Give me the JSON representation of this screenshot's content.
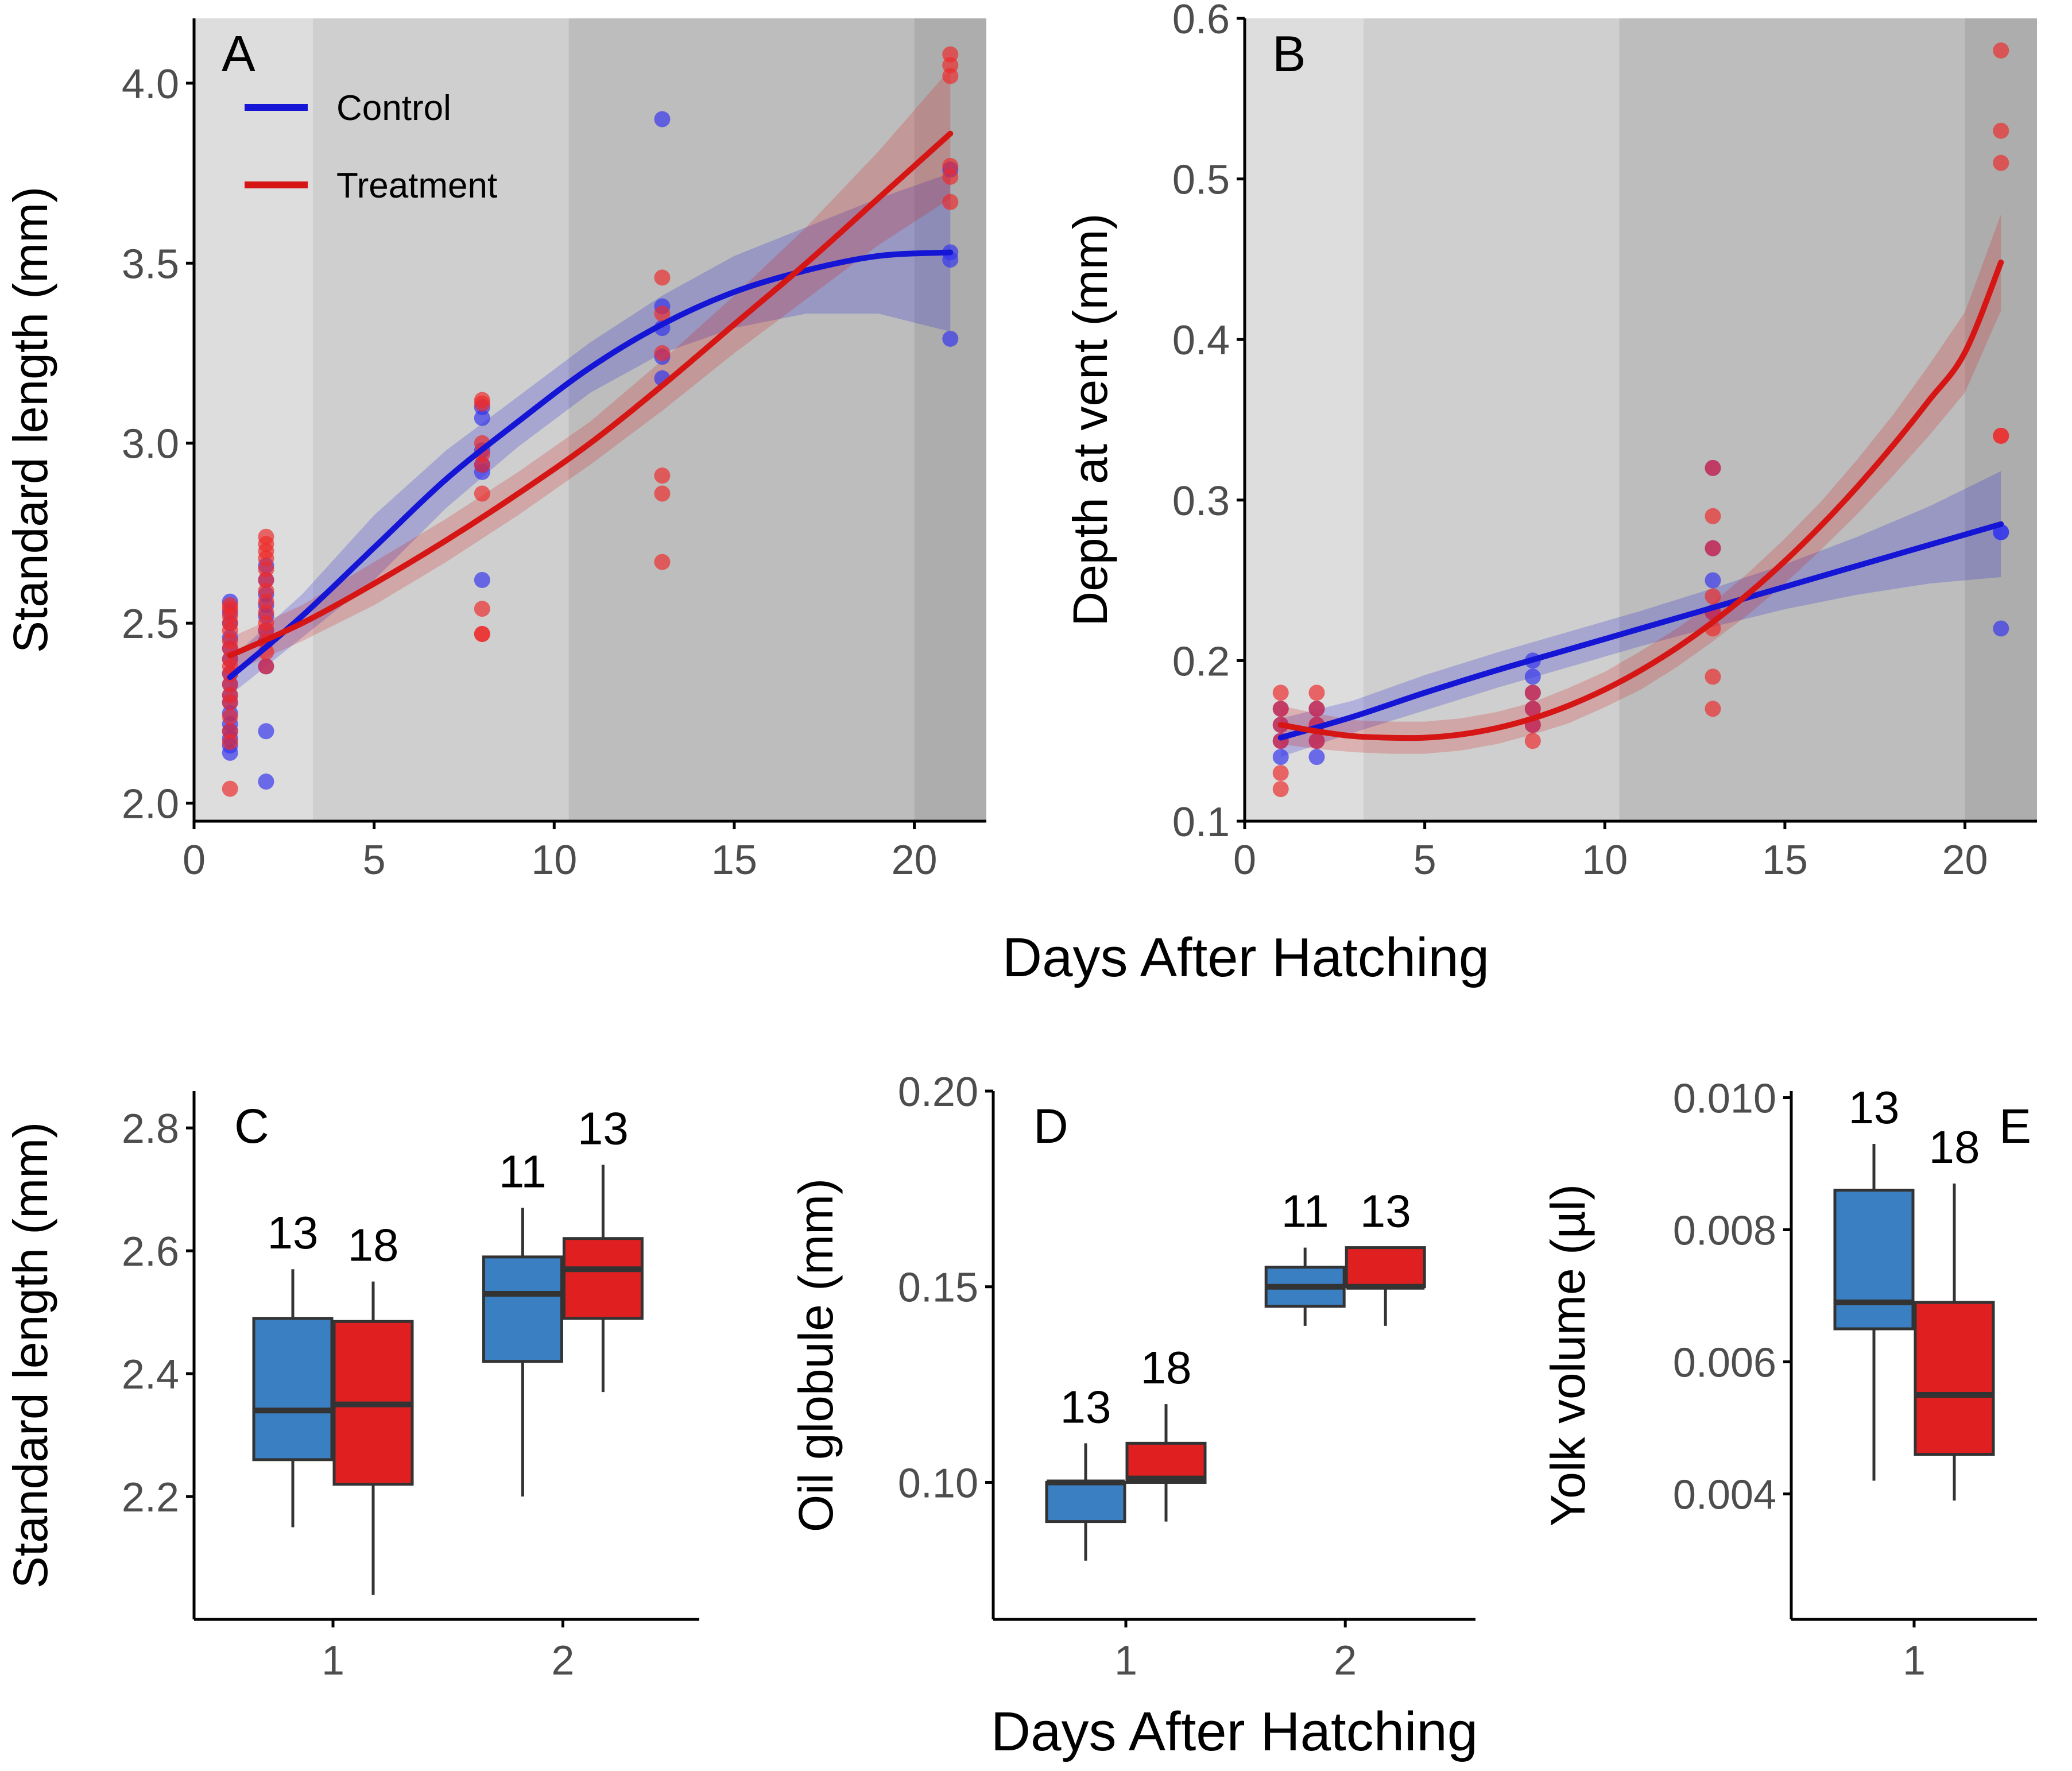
{
  "figure": {
    "shared_xlabel_top": "Days After Hatching",
    "shared_xlabel_bottom": "Days After Hatching"
  },
  "colors": {
    "control_line": "#1515d6",
    "treatment_line": "#d61515",
    "control_point": "#3333ee",
    "treatment_point": "#ee2a2a",
    "control_box": "#3a7fc1",
    "treatment_box": "#e02020",
    "band1": "#dddddd",
    "band2": "#cfcfcf",
    "band3": "#bdbdbd",
    "band4": "#adadad"
  },
  "chart_data": [
    {
      "id": "A",
      "type": "scatter",
      "letter": "A",
      "xlabel": "",
      "ylabel": "Standard length (mm)",
      "xlim": [
        0,
        22
      ],
      "ylim": [
        1.95,
        4.18
      ],
      "xticks": [
        0,
        5,
        10,
        15,
        20
      ],
      "yticks": [
        2.0,
        2.5,
        3.0,
        3.5,
        4.0
      ],
      "ytick_labels": [
        "2.0",
        "2.5",
        "3.0",
        "3.5",
        "4.0"
      ],
      "xtick_labels": [
        "0",
        "5",
        "10",
        "15",
        "20"
      ],
      "background_bands": [
        [
          0,
          3.3
        ],
        [
          3.3,
          10.4
        ],
        [
          10.4,
          20.0
        ],
        [
          20.0,
          22
        ]
      ],
      "legend": {
        "position": "top-left",
        "entries": [
          "Control",
          "Treatment"
        ]
      },
      "series": [
        {
          "name": "Control",
          "points": [
            [
              1,
              2.14
            ],
            [
              1,
              2.16
            ],
            [
              1,
              2.18
            ],
            [
              1,
              2.2
            ],
            [
              1,
              2.22
            ],
            [
              1,
              2.25
            ],
            [
              1,
              2.28
            ],
            [
              1,
              2.3
            ],
            [
              1,
              2.33
            ],
            [
              1,
              2.36
            ],
            [
              1,
              2.4
            ],
            [
              1,
              2.43
            ],
            [
              1,
              2.46
            ],
            [
              1,
              2.5
            ],
            [
              1,
              2.53
            ],
            [
              1,
              2.56
            ],
            [
              2,
              2.06
            ],
            [
              2,
              2.2
            ],
            [
              2,
              2.38
            ],
            [
              2,
              2.45
            ],
            [
              2,
              2.48
            ],
            [
              2,
              2.52
            ],
            [
              2,
              2.55
            ],
            [
              2,
              2.58
            ],
            [
              2,
              2.62
            ],
            [
              2,
              2.66
            ],
            [
              8,
              2.62
            ],
            [
              8,
              2.92
            ],
            [
              8,
              2.94
            ],
            [
              8,
              2.98
            ],
            [
              8,
              3.07
            ],
            [
              8,
              3.1
            ],
            [
              13,
              3.18
            ],
            [
              13,
              3.24
            ],
            [
              13,
              3.32
            ],
            [
              13,
              3.38
            ],
            [
              13,
              3.9
            ],
            [
              21,
              3.29
            ],
            [
              21,
              3.51
            ],
            [
              21,
              3.53
            ],
            [
              21,
              3.76
            ]
          ],
          "fit_x": [
            1,
            3,
            5,
            7,
            9,
            11,
            13,
            15,
            17,
            19,
            21
          ],
          "fit_y": [
            2.35,
            2.52,
            2.71,
            2.9,
            3.06,
            3.21,
            3.33,
            3.42,
            3.48,
            3.52,
            3.53
          ],
          "ci_half": [
            0.05,
            0.06,
            0.09,
            0.08,
            0.07,
            0.07,
            0.08,
            0.1,
            0.12,
            0.16,
            0.22
          ]
        },
        {
          "name": "Treatment",
          "points": [
            [
              1,
              2.04
            ],
            [
              1,
              2.17
            ],
            [
              1,
              2.2
            ],
            [
              1,
              2.24
            ],
            [
              1,
              2.28
            ],
            [
              1,
              2.3
            ],
            [
              1,
              2.33
            ],
            [
              1,
              2.36
            ],
            [
              1,
              2.38
            ],
            [
              1,
              2.4
            ],
            [
              1,
              2.43
            ],
            [
              1,
              2.45
            ],
            [
              1,
              2.48
            ],
            [
              1,
              2.5
            ],
            [
              1,
              2.52
            ],
            [
              1,
              2.54
            ],
            [
              1,
              2.55
            ],
            [
              2,
              2.38
            ],
            [
              2,
              2.42
            ],
            [
              2,
              2.45
            ],
            [
              2,
              2.48
            ],
            [
              2,
              2.5
            ],
            [
              2,
              2.53
            ],
            [
              2,
              2.56
            ],
            [
              2,
              2.59
            ],
            [
              2,
              2.62
            ],
            [
              2,
              2.65
            ],
            [
              2,
              2.68
            ],
            [
              2,
              2.7
            ],
            [
              2,
              2.72
            ],
            [
              2,
              2.74
            ],
            [
              8,
              2.47
            ],
            [
              8,
              2.47
            ],
            [
              8,
              2.54
            ],
            [
              8,
              2.86
            ],
            [
              8,
              2.94
            ],
            [
              8,
              2.97
            ],
            [
              8,
              3.0
            ],
            [
              8,
              3.11
            ],
            [
              8,
              3.12
            ],
            [
              13,
              2.67
            ],
            [
              13,
              2.86
            ],
            [
              13,
              2.91
            ],
            [
              13,
              3.25
            ],
            [
              13,
              3.36
            ],
            [
              13,
              3.46
            ],
            [
              21,
              3.67
            ],
            [
              21,
              3.74
            ],
            [
              21,
              3.77
            ],
            [
              21,
              4.02
            ],
            [
              21,
              4.05
            ],
            [
              21,
              4.08
            ]
          ],
          "fit_x": [
            1,
            3,
            5,
            7,
            9,
            11,
            13,
            15,
            17,
            19,
            21
          ],
          "fit_y": [
            2.41,
            2.5,
            2.61,
            2.73,
            2.86,
            3.0,
            3.16,
            3.33,
            3.5,
            3.68,
            3.86
          ],
          "ci_half": [
            0.05,
            0.05,
            0.06,
            0.06,
            0.06,
            0.06,
            0.07,
            0.08,
            0.1,
            0.13,
            0.18
          ]
        }
      ]
    },
    {
      "id": "B",
      "type": "scatter",
      "letter": "B",
      "xlabel": "",
      "ylabel": "Depth at vent (mm)",
      "xlim": [
        0,
        22
      ],
      "ylim": [
        0.1,
        0.6
      ],
      "xticks": [
        0,
        5,
        10,
        15,
        20
      ],
      "yticks": [
        0.1,
        0.2,
        0.3,
        0.4,
        0.5,
        0.6
      ],
      "ytick_labels": [
        "0.1",
        "0.2",
        "0.3",
        "0.4",
        "0.5",
        "0.6"
      ],
      "xtick_labels": [
        "0",
        "5",
        "10",
        "15",
        "20"
      ],
      "background_bands": [
        [
          0,
          3.3
        ],
        [
          3.3,
          10.4
        ],
        [
          10.4,
          20.0
        ],
        [
          20.0,
          22
        ]
      ],
      "series": [
        {
          "name": "Control",
          "points": [
            [
              1,
              0.14
            ],
            [
              1,
              0.15
            ],
            [
              1,
              0.16
            ],
            [
              1,
              0.17
            ],
            [
              2,
              0.14
            ],
            [
              2,
              0.15
            ],
            [
              2,
              0.16
            ],
            [
              2,
              0.17
            ],
            [
              8,
              0.16
            ],
            [
              8,
              0.17
            ],
            [
              8,
              0.18
            ],
            [
              8,
              0.19
            ],
            [
              8,
              0.2
            ],
            [
              13,
              0.23
            ],
            [
              13,
              0.25
            ],
            [
              13,
              0.27
            ],
            [
              13,
              0.32
            ],
            [
              21,
              0.22
            ],
            [
              21,
              0.28
            ],
            [
              21,
              0.28
            ]
          ],
          "fit_x": [
            1,
            3,
            5,
            7,
            9,
            11,
            13,
            15,
            17,
            19,
            21
          ],
          "fit_y": [
            0.152,
            0.165,
            0.18,
            0.194,
            0.207,
            0.22,
            0.233,
            0.246,
            0.259,
            0.272,
            0.285
          ],
          "ci_half": [
            0.012,
            0.01,
            0.011,
            0.011,
            0.011,
            0.011,
            0.012,
            0.014,
            0.018,
            0.024,
            0.033
          ]
        },
        {
          "name": "Treatment",
          "points": [
            [
              1,
              0.12
            ],
            [
              1,
              0.13
            ],
            [
              1,
              0.15
            ],
            [
              1,
              0.16
            ],
            [
              1,
              0.17
            ],
            [
              1,
              0.18
            ],
            [
              2,
              0.15
            ],
            [
              2,
              0.16
            ],
            [
              2,
              0.17
            ],
            [
              2,
              0.18
            ],
            [
              8,
              0.15
            ],
            [
              8,
              0.16
            ],
            [
              8,
              0.17
            ],
            [
              8,
              0.18
            ],
            [
              13,
              0.17
            ],
            [
              13,
              0.19
            ],
            [
              13,
              0.22
            ],
            [
              13,
              0.23
            ],
            [
              13,
              0.24
            ],
            [
              13,
              0.27
            ],
            [
              13,
              0.29
            ],
            [
              13,
              0.32
            ],
            [
              21,
              0.34
            ],
            [
              21,
              0.34
            ],
            [
              21,
              0.51
            ],
            [
              21,
              0.53
            ],
            [
              21,
              0.58
            ]
          ],
          "fit_x": [
            1,
            2,
            3,
            4,
            5,
            6,
            7,
            8,
            9,
            10,
            11,
            12,
            13,
            14,
            15,
            16,
            17,
            18,
            19,
            20,
            21
          ],
          "fit_y": [
            0.16,
            0.156,
            0.153,
            0.152,
            0.152,
            0.154,
            0.158,
            0.164,
            0.172,
            0.182,
            0.194,
            0.208,
            0.224,
            0.242,
            0.262,
            0.284,
            0.308,
            0.334,
            0.362,
            0.392,
            0.448
          ],
          "ci_half": [
            0.012,
            0.011,
            0.01,
            0.01,
            0.01,
            0.01,
            0.01,
            0.01,
            0.011,
            0.011,
            0.012,
            0.012,
            0.012,
            0.013,
            0.014,
            0.015,
            0.017,
            0.019,
            0.022,
            0.025,
            0.03
          ]
        }
      ]
    },
    {
      "id": "C",
      "type": "box",
      "letter": "C",
      "xlabel": "",
      "ylabel": "Standard length (mm)",
      "ylim": [
        2.0,
        2.86
      ],
      "yticks": [
        2.2,
        2.4,
        2.6,
        2.8
      ],
      "ytick_labels": [
        "2.2",
        "2.4",
        "2.6",
        "2.8"
      ],
      "categories": [
        "1",
        "2"
      ],
      "series": [
        {
          "name": "Control",
          "boxes": [
            {
              "min": 2.15,
              "q1": 2.26,
              "median": 2.34,
              "q3": 2.49,
              "max": 2.57,
              "n": "13"
            },
            {
              "min": 2.2,
              "q1": 2.42,
              "median": 2.53,
              "q3": 2.59,
              "max": 2.67,
              "n": "11"
            }
          ]
        },
        {
          "name": "Treatment",
          "boxes": [
            {
              "min": 2.04,
              "q1": 2.22,
              "median": 2.35,
              "q3": 2.485,
              "max": 2.55,
              "n": "18"
            },
            {
              "min": 2.37,
              "q1": 2.49,
              "median": 2.57,
              "q3": 2.62,
              "max": 2.74,
              "n": "13"
            }
          ]
        }
      ]
    },
    {
      "id": "D",
      "type": "box",
      "letter": "D",
      "xlabel": "Days After Hatching",
      "ylabel": "Oil globule (mm)",
      "ylim": [
        0.065,
        0.2
      ],
      "yticks": [
        0.1,
        0.15,
        0.2
      ],
      "ytick_labels": [
        "0.10",
        "0.15",
        "0.20"
      ],
      "categories": [
        "1",
        "2"
      ],
      "series": [
        {
          "name": "Control",
          "boxes": [
            {
              "min": 0.08,
              "q1": 0.09,
              "median": 0.1,
              "q3": 0.1,
              "max": 0.11,
              "n": "13"
            },
            {
              "min": 0.14,
              "q1": 0.145,
              "median": 0.15,
              "q3": 0.155,
              "max": 0.16,
              "n": "11"
            }
          ]
        },
        {
          "name": "Treatment",
          "boxes": [
            {
              "min": 0.09,
              "q1": 0.1,
              "median": 0.101,
              "q3": 0.11,
              "max": 0.12,
              "n": "18"
            },
            {
              "min": 0.14,
              "q1": 0.15,
              "median": 0.15,
              "q3": 0.16,
              "max": 0.16,
              "n": "13"
            }
          ]
        }
      ]
    },
    {
      "id": "E",
      "type": "box",
      "letter": "E",
      "xlabel": "",
      "ylabel": "Yolk volume (µl)",
      "ylim": [
        0.0021,
        0.0101
      ],
      "yticks": [
        0.004,
        0.006,
        0.008,
        0.01
      ],
      "ytick_labels": [
        "0.004",
        "0.006",
        "0.008",
        "0.010"
      ],
      "categories": [
        "1"
      ],
      "series": [
        {
          "name": "Control",
          "boxes": [
            {
              "min": 0.0042,
              "q1": 0.0065,
              "median": 0.0069,
              "q3": 0.0086,
              "max": 0.0093,
              "n": "13"
            }
          ]
        },
        {
          "name": "Treatment",
          "boxes": [
            {
              "min": 0.0039,
              "q1": 0.0046,
              "median": 0.0055,
              "q3": 0.0069,
              "max": 0.0087,
              "n": "18"
            }
          ]
        }
      ]
    }
  ]
}
